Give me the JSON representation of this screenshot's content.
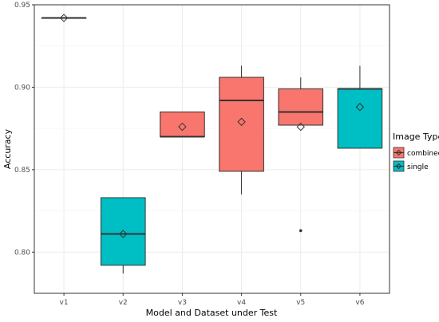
{
  "chart_data": {
    "type": "box",
    "title": "",
    "xlabel": "Model and Dataset under Test",
    "ylabel": "Accuracy",
    "categories": [
      "v1",
      "v2",
      "v3",
      "v4",
      "v5",
      "v6"
    ],
    "ylim": [
      0.775,
      0.95
    ],
    "yticks": [
      0.8,
      0.85,
      0.9,
      0.95
    ],
    "ytick_labels": [
      "0.80",
      "0.85",
      "0.90",
      "0.95"
    ],
    "grid": true,
    "legend": {
      "title": "Image Type",
      "placement": "right",
      "entries": [
        {
          "label": "combined",
          "color": "#F8766D"
        },
        {
          "label": "single",
          "color": "#00BFC4"
        }
      ]
    },
    "boxes": [
      {
        "category": "v1",
        "group": "combined",
        "whisker_low": 0.942,
        "q1": 0.942,
        "median": 0.942,
        "q3": 0.942,
        "whisker_high": 0.942,
        "mean": 0.942,
        "outliers": []
      },
      {
        "category": "v2",
        "group": "single",
        "whisker_low": 0.787,
        "q1": 0.792,
        "median": 0.811,
        "q3": 0.833,
        "whisker_high": 0.833,
        "mean": 0.811,
        "outliers": []
      },
      {
        "category": "v3",
        "group": "combined",
        "whisker_low": 0.87,
        "q1": 0.87,
        "median": 0.87,
        "q3": 0.885,
        "whisker_high": 0.885,
        "mean": 0.876,
        "outliers": []
      },
      {
        "category": "v4",
        "group": "combined",
        "whisker_low": 0.835,
        "q1": 0.849,
        "median": 0.892,
        "q3": 0.906,
        "whisker_high": 0.913,
        "mean": 0.879,
        "outliers": []
      },
      {
        "category": "v5",
        "group": "combined",
        "whisker_low": 0.877,
        "q1": 0.877,
        "median": 0.885,
        "q3": 0.899,
        "whisker_high": 0.906,
        "mean": 0.876,
        "outliers": [
          0.813
        ]
      },
      {
        "category": "v6",
        "group": "single",
        "whisker_low": 0.863,
        "q1": 0.863,
        "median": 0.899,
        "q3": 0.899,
        "whisker_high": 0.913,
        "mean": 0.888,
        "outliers": []
      }
    ]
  }
}
